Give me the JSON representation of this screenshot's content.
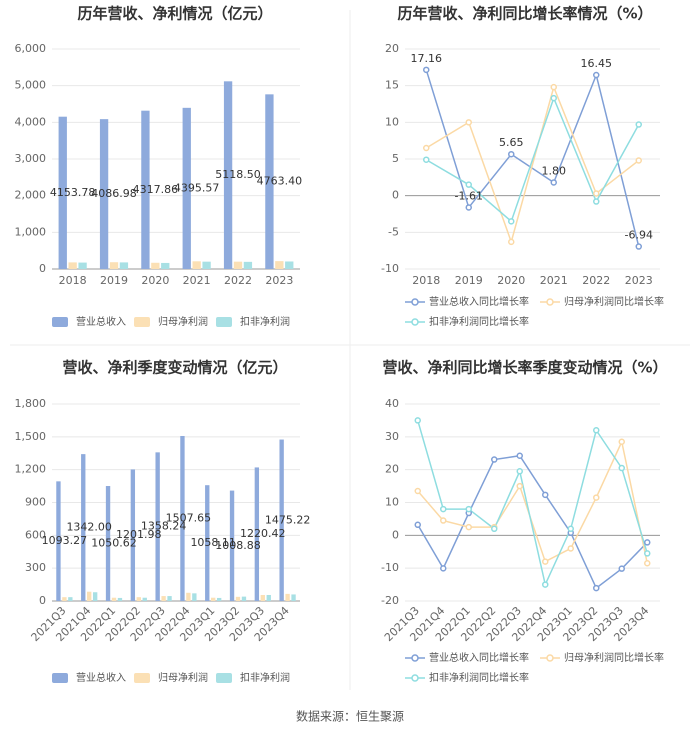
{
  "chart_data": [
    {
      "type": "bar",
      "title": "历年营收、净利情况（亿元）",
      "categories": [
        "2018",
        "2019",
        "2020",
        "2021",
        "2022",
        "2023"
      ],
      "series": [
        {
          "name": "营业总收入",
          "color": "#8eaadc",
          "values": [
            4153.78,
            4086.98,
            4317.86,
            4395.57,
            5118.5,
            4763.4
          ],
          "value_labels": [
            "4153.78",
            "4086.98",
            "4317.86",
            "4395.57",
            "5118.50",
            "4763.40"
          ]
        },
        {
          "name": "归母净利润",
          "color": "#fbe0b5",
          "values": [
            180,
            185,
            170,
            210,
            200,
            215
          ]
        },
        {
          "name": "扣非净利润",
          "color": "#a8e0e4",
          "values": [
            175,
            180,
            165,
            200,
            195,
            205
          ]
        }
      ],
      "ylim": [
        0,
        6000
      ],
      "yticks": [
        0,
        {
          "value": 1000,
          "label": "1,000"
        },
        {
          "value": 2000,
          "label": "2,000"
        },
        {
          "value": 3000,
          "label": "3,000"
        },
        {
          "value": 4000,
          "label": "4,000"
        },
        {
          "value": 5000,
          "label": "5,000"
        },
        {
          "value": 6000,
          "label": "6,000"
        }
      ],
      "grid": true
    },
    {
      "type": "line",
      "title": "历年营收、净利同比增长率情况（%）",
      "categories": [
        "2018",
        "2019",
        "2020",
        "2021",
        "2022",
        "2023"
      ],
      "series": [
        {
          "name": "营业总收入同比增长率",
          "color": "#7f9fd6",
          "values": [
            17.16,
            -1.61,
            5.65,
            1.8,
            16.45,
            -6.94
          ],
          "value_labels": [
            "17.16",
            "-1.61",
            "5.65",
            "1.80",
            "16.45",
            "-6.94"
          ]
        },
        {
          "name": "归母净利润同比增长率",
          "color": "#fbd9a5",
          "values": [
            6.5,
            10.0,
            -6.3,
            14.8,
            0.3,
            4.8
          ]
        },
        {
          "name": "扣非净利润同比增长率",
          "color": "#8edde0",
          "values": [
            4.9,
            1.5,
            -3.5,
            13.3,
            -0.8,
            9.7
          ]
        }
      ],
      "ylim": [
        -10,
        20
      ],
      "yticks": [
        -10,
        -5,
        0,
        5,
        10,
        15,
        20
      ],
      "grid": true
    },
    {
      "type": "bar",
      "title": "营收、净利季度变动情况（亿元）",
      "categories": [
        "2021Q3",
        "2021Q4",
        "2022Q1",
        "2022Q2",
        "2022Q3",
        "2022Q4",
        "2023Q1",
        "2023Q2",
        "2023Q3",
        "2023Q4"
      ],
      "series": [
        {
          "name": "营业总收入",
          "color": "#8eaadc",
          "values": [
            1093.27,
            1342.0,
            1050.62,
            1201.98,
            1358.24,
            1507.65,
            1058.11,
            1008.88,
            1220.42,
            1475.22
          ],
          "value_labels": [
            "1093.27",
            "1342.00",
            "1050.62",
            "1201.98",
            "1358.24",
            "1507.65",
            "1058.11",
            "1008.88",
            "1220.42",
            "1475.22"
          ]
        },
        {
          "name": "归母净利润",
          "color": "#fbe0b5",
          "values": [
            35,
            85,
            30,
            35,
            45,
            75,
            30,
            38,
            55,
            65
          ]
        },
        {
          "name": "扣非净利润",
          "color": "#a8e0e4",
          "values": [
            35,
            80,
            28,
            30,
            45,
            70,
            28,
            40,
            55,
            60
          ]
        }
      ],
      "ylim": [
        0,
        1800
      ],
      "yticks": [
        0,
        300,
        600,
        900,
        {
          "value": 1200,
          "label": "1,200"
        },
        {
          "value": 1500,
          "label": "1,500"
        },
        {
          "value": 1800,
          "label": "1,800"
        }
      ],
      "grid": true
    },
    {
      "type": "line",
      "title": "营收、净利同比增长率季度变动情况（%）",
      "categories": [
        "2021Q3",
        "2021Q4",
        "2022Q1",
        "2022Q2",
        "2022Q3",
        "2022Q4",
        "2023Q1",
        "2023Q2",
        "2023Q3",
        "2023Q4"
      ],
      "series": [
        {
          "name": "营业总收入同比增长率",
          "color": "#7f9fd6",
          "values": [
            3.21,
            -10.06,
            6.79,
            23.09,
            24.24,
            12.34,
            0.79,
            -16.07,
            -10.15,
            -2.15
          ]
        },
        {
          "name": "归母净利润同比增长率",
          "color": "#fbd9a5",
          "values": [
            13.5,
            4.5,
            2.5,
            2.5,
            15,
            -8,
            -4,
            11.5,
            28.5,
            -8.5
          ]
        },
        {
          "name": "扣非净利润同比增长率",
          "color": "#8edde0",
          "values": [
            35,
            8,
            8,
            2,
            19.5,
            -15,
            2,
            32,
            20.5,
            -5.5
          ]
        }
      ],
      "ylim": [
        -20,
        40
      ],
      "yticks": [
        -20,
        -10,
        0,
        10,
        20,
        30,
        40
      ],
      "grid": true
    }
  ],
  "source": "数据来源：恒生聚源"
}
